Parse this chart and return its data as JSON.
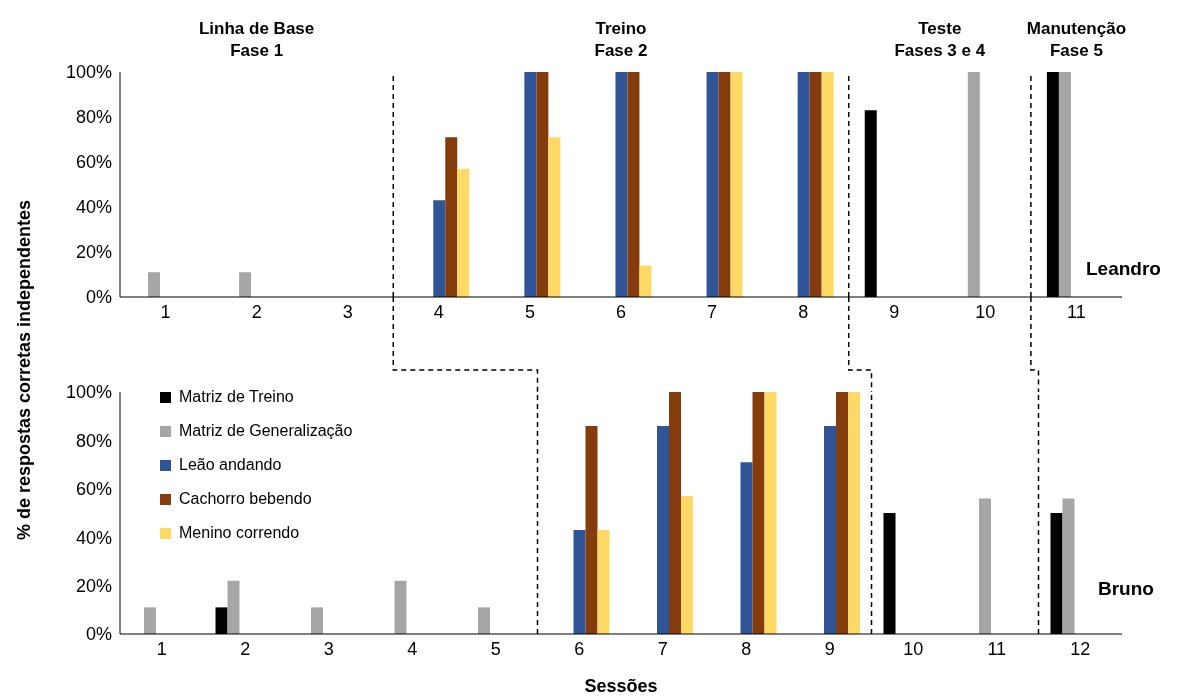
{
  "chart_data": [
    {
      "type": "bar",
      "x": [
        1,
        2,
        3,
        4,
        5,
        6,
        7,
        8,
        9,
        10,
        11
      ],
      "xlim": [
        0.5,
        11.5
      ],
      "xticks": [
        1,
        2,
        3,
        4,
        5,
        6,
        7,
        8,
        9,
        10,
        11
      ],
      "ylim": [
        0,
        100
      ],
      "yticks": [
        {
          "value": 0,
          "label": "0%"
        },
        {
          "value": 20,
          "label": "20%"
        },
        {
          "value": 40,
          "label": "40%"
        },
        {
          "value": 60,
          "label": "60%"
        },
        {
          "value": 80,
          "label": "80%"
        },
        {
          "value": 100,
          "label": "100%"
        }
      ],
      "ylabel": "% de respostas corretas independentes",
      "legend": false,
      "annotations": [
        "Linha de Base\nFase 1",
        "Treino\nFase 2",
        "Teste\nFases 3 e 4",
        "Manutenção\nFase 5",
        "Leandro"
      ],
      "ref_lines": [
        {
          "axis": "x",
          "value": 3.5,
          "line_style": "dashed",
          "color": "#000000"
        },
        {
          "axis": "x",
          "value": 8.5,
          "line_style": "dashed",
          "color": "#000000"
        },
        {
          "axis": "x",
          "value": 10.5,
          "line_style": "dashed",
          "color": "#000000"
        }
      ],
      "series": [
        {
          "color": "#000000",
          "values": [
            0,
            0,
            0,
            0,
            0,
            0,
            0,
            0,
            83,
            0,
            100
          ]
        },
        {
          "color": "#a6a6a6",
          "values": [
            11,
            11,
            0,
            0,
            0,
            0,
            0,
            0,
            0,
            100,
            100
          ]
        },
        {
          "color": "#2f5597",
          "values": [
            0,
            0,
            0,
            43,
            100,
            100,
            100,
            100,
            0,
            0,
            0
          ]
        },
        {
          "color": "#843c0c",
          "values": [
            0,
            0,
            0,
            71,
            100,
            100,
            100,
            100,
            0,
            0,
            0
          ]
        },
        {
          "color": "#ffd966",
          "values": [
            0,
            0,
            0,
            57,
            71,
            14,
            100,
            100,
            0,
            0,
            0
          ]
        }
      ]
    },
    {
      "type": "bar",
      "x": [
        1,
        2,
        3,
        4,
        5,
        6,
        7,
        8,
        9,
        10,
        11,
        12
      ],
      "xlim": [
        0.5,
        12.5
      ],
      "xticks": [
        1,
        2,
        3,
        4,
        5,
        6,
        7,
        8,
        9,
        10,
        11,
        12
      ],
      "ylim": [
        0,
        100
      ],
      "yticks": [
        {
          "value": 0,
          "label": "0%"
        },
        {
          "value": 20,
          "label": "20%"
        },
        {
          "value": 40,
          "label": "40%"
        },
        {
          "value": 60,
          "label": "60%"
        },
        {
          "value": 80,
          "label": "80%"
        },
        {
          "value": 100,
          "label": "100%"
        }
      ],
      "xlabel": "Sessões",
      "legend": "top left",
      "annotations": [
        "Bruno"
      ],
      "ref_lines": [
        {
          "axis": "x",
          "value": 5.5,
          "line_style": "dashed",
          "color": "#000000"
        },
        {
          "axis": "x",
          "value": 9.5,
          "line_style": "dashed",
          "color": "#000000"
        },
        {
          "axis": "x",
          "value": 11.5,
          "line_style": "dashed",
          "color": "#000000"
        }
      ],
      "series": [
        {
          "name": "Matriz de Treino",
          "color": "#000000",
          "values": [
            0,
            11,
            0,
            0,
            0,
            0,
            0,
            0,
            0,
            50,
            0,
            50
          ]
        },
        {
          "name": "Matriz de Generalização",
          "color": "#a6a6a6",
          "values": [
            11,
            22,
            11,
            22,
            11,
            0,
            0,
            0,
            0,
            0,
            56,
            56
          ]
        },
        {
          "name": "Leão andando",
          "color": "#2f5597",
          "values": [
            0,
            0,
            0,
            0,
            0,
            43,
            86,
            71,
            86,
            0,
            0,
            0
          ]
        },
        {
          "name": "Cachorro bebendo",
          "color": "#843c0c",
          "values": [
            0,
            0,
            0,
            0,
            0,
            86,
            100,
            100,
            100,
            0,
            0,
            0
          ]
        },
        {
          "name": "Menino correndo",
          "color": "#ffd966",
          "values": [
            0,
            0,
            0,
            0,
            0,
            43,
            57,
            100,
            100,
            0,
            0,
            0
          ]
        }
      ]
    }
  ]
}
